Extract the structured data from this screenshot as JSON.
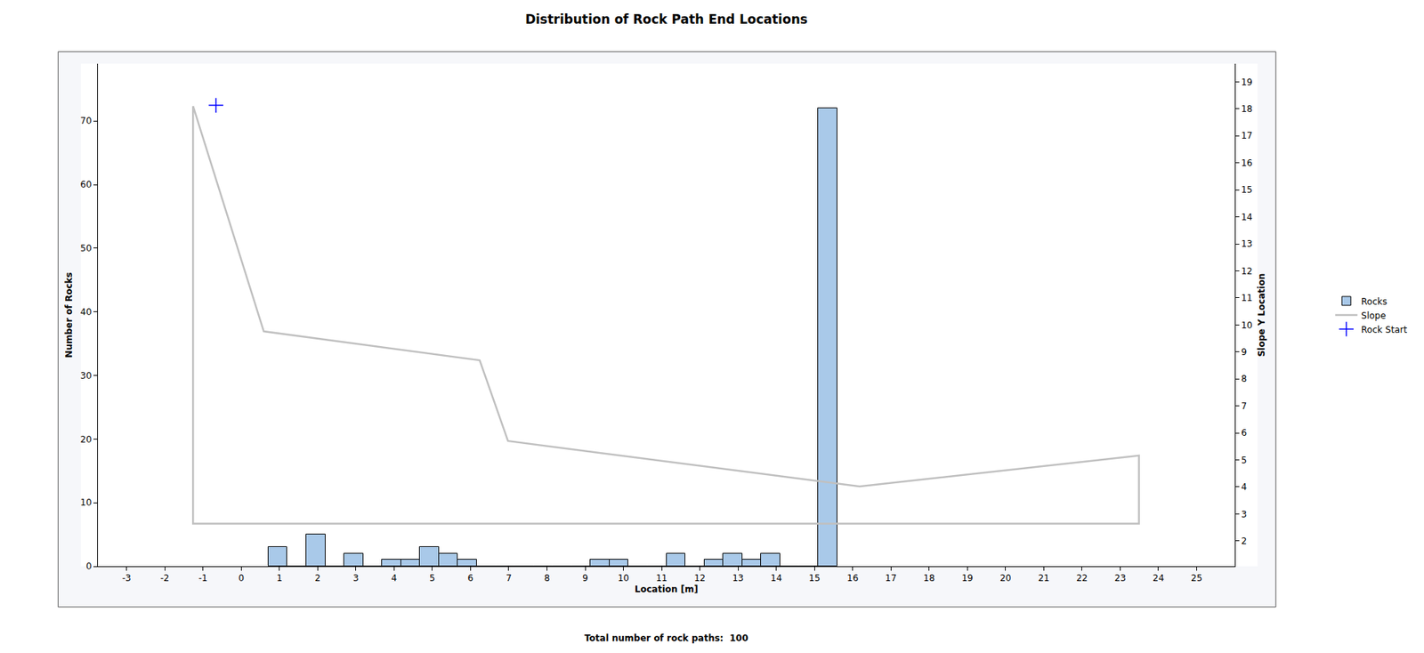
{
  "chart_data": {
    "type": "histogram",
    "title": "Distribution of Rock Path End Locations",
    "xlabel": "Location [m]",
    "ylabel": "Number of Rocks",
    "y2label": "Slope Y Location",
    "footer": "Total number of rock paths:  100",
    "xlim": [
      -3.75,
      26
    ],
    "xticks": [
      -3,
      -2,
      -1,
      0,
      1,
      2,
      3,
      4,
      5,
      6,
      7,
      8,
      9,
      10,
      11,
      12,
      13,
      14,
      15,
      16,
      17,
      18,
      19,
      20,
      21,
      22,
      23,
      24,
      25
    ],
    "ylim": [
      0,
      79
    ],
    "yticks": [
      0,
      10,
      20,
      30,
      40,
      50,
      60,
      70
    ],
    "y2lim": [
      1.06,
      19.67
    ],
    "y2ticks": [
      2,
      3,
      4,
      5,
      6,
      7,
      8,
      9,
      10,
      11,
      12,
      13,
      14,
      15,
      16,
      17,
      18,
      19
    ],
    "grid": false,
    "legend": "right",
    "series": [
      {
        "name": "Rocks",
        "type": "bar",
        "color": "#a9c9e9",
        "bins": [
          0.71,
          1.206,
          1.702,
          2.198,
          2.694,
          3.19,
          3.686,
          4.182,
          4.678,
          5.174,
          5.67,
          6.166,
          6.662,
          7.158,
          7.654,
          8.15,
          8.646,
          9.142,
          9.638,
          10.134,
          10.63,
          11.126,
          11.622,
          12.118,
          12.614,
          13.11,
          13.606,
          14.102,
          14.598,
          15.094,
          15.59
        ],
        "values": [
          3,
          0,
          5,
          0,
          2,
          0,
          1,
          1,
          3,
          2,
          1,
          0,
          0,
          0,
          0,
          0,
          0,
          1,
          1,
          0,
          0,
          2,
          0,
          1,
          2,
          1,
          2,
          0,
          0,
          72
        ]
      },
      {
        "name": "Slope",
        "type": "line",
        "axis": "y2",
        "color": "#c0c0c0",
        "x": [
          -1.26,
          0.59,
          6.24,
          6.98,
          16.18,
          23.49,
          23.49,
          -1.26,
          -1.26
        ],
        "values": [
          18.1,
          9.76,
          8.69,
          5.7,
          4.02,
          5.16,
          2.64,
          2.64,
          18.1
        ]
      },
      {
        "name": "Rock Start",
        "type": "scatter",
        "axis": "y2",
        "color": "#0000ff",
        "marker": "cross",
        "x": [
          -0.66
        ],
        "values": [
          18.13
        ]
      }
    ]
  }
}
